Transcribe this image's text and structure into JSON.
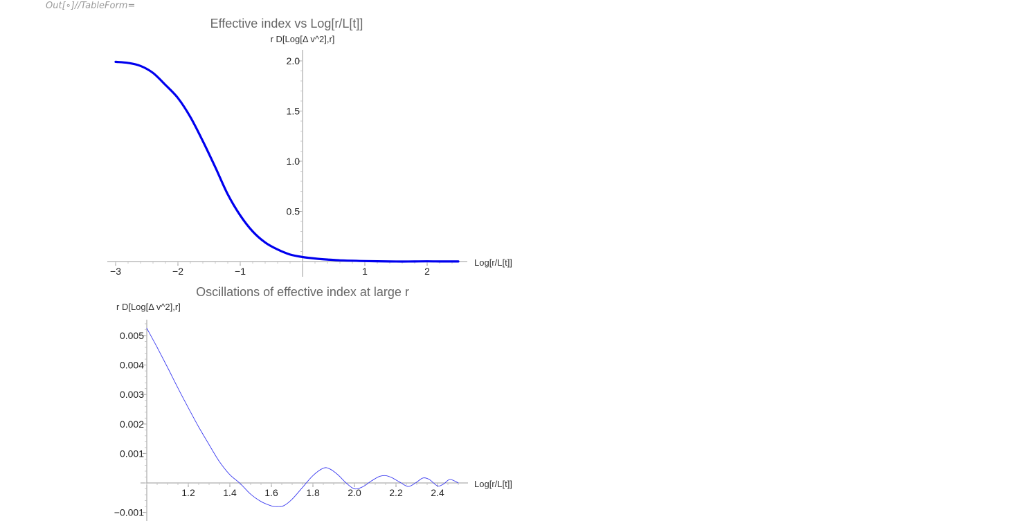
{
  "notebook": {
    "out_label": "Out[∘]//TableForm="
  },
  "chart_data": [
    {
      "type": "line",
      "title": "Effective index vs Log[r/L[t]]",
      "xlabel": "Log[r/L[t]]",
      "ylabel": "r D[Log[Δ v^2],r]",
      "xlim": [
        -3.1,
        2.6
      ],
      "ylim": [
        0.0,
        2.05
      ],
      "xticks": [
        -3,
        -2,
        -1,
        1,
        2
      ],
      "xtick_labels": [
        "−3",
        "−2",
        "−1",
        "1",
        "2"
      ],
      "yticks": [
        0.5,
        1.0,
        1.5,
        2.0
      ],
      "ytick_labels": [
        "0.5",
        "1.0",
        "1.5",
        "2.0"
      ],
      "grid": false,
      "series": [
        {
          "color": "#0000ee",
          "x": [
            -3.0,
            -2.8,
            -2.6,
            -2.4,
            -2.2,
            -2.0,
            -1.8,
            -1.6,
            -1.4,
            -1.2,
            -1.0,
            -0.8,
            -0.6,
            -0.4,
            -0.2,
            0.0,
            0.2,
            0.4,
            0.6,
            0.8,
            1.0,
            1.2,
            1.4,
            1.6,
            1.8,
            2.0,
            2.2,
            2.5
          ],
          "y": [
            1.99,
            1.98,
            1.95,
            1.88,
            1.76,
            1.63,
            1.44,
            1.2,
            0.94,
            0.67,
            0.46,
            0.3,
            0.19,
            0.12,
            0.07,
            0.045,
            0.03,
            0.02,
            0.012,
            0.008,
            0.005,
            0.003,
            0.001,
            0.0,
            0.001,
            0.002,
            0.001,
            0.001
          ]
        }
      ]
    },
    {
      "type": "line",
      "title": "Oscillations of effective index at large r",
      "xlabel": "Log[r/L[t]]",
      "ylabel": "r D[Log[Δ v^2],r]",
      "xlim": [
        1.0,
        2.52
      ],
      "ylim": [
        -0.0012,
        0.0055
      ],
      "xticks": [
        1.2,
        1.4,
        1.6,
        1.8,
        2.0,
        2.2,
        2.4
      ],
      "xtick_labels": [
        "1.2",
        "1.4",
        "1.6",
        "1.8",
        "2.0",
        "2.2",
        "2.4"
      ],
      "yticks": [
        -0.001,
        0.001,
        0.002,
        0.003,
        0.004,
        0.005
      ],
      "ytick_labels": [
        "−0.001",
        "0.001",
        "0.002",
        "0.003",
        "0.004",
        "0.005"
      ],
      "grid": false,
      "series": [
        {
          "color": "#3a3af0",
          "x": [
            1.0,
            1.05,
            1.1,
            1.15,
            1.2,
            1.25,
            1.3,
            1.35,
            1.4,
            1.45,
            1.5,
            1.55,
            1.6,
            1.63,
            1.66,
            1.7,
            1.75,
            1.8,
            1.85,
            1.88,
            1.92,
            1.96,
            2.0,
            2.04,
            2.08,
            2.12,
            2.15,
            2.18,
            2.22,
            2.26,
            2.3,
            2.33,
            2.36,
            2.4,
            2.43,
            2.46,
            2.5
          ],
          "y": [
            0.00525,
            0.0046,
            0.00392,
            0.00322,
            0.00255,
            0.0019,
            0.0013,
            0.00072,
            0.00028,
            -2e-05,
            -0.00038,
            -0.00063,
            -0.00078,
            -0.0008,
            -0.00077,
            -0.00055,
            -0.00015,
            0.00025,
            0.0005,
            0.00048,
            0.00028,
            0.0,
            -0.0002,
            -0.00013,
            6e-05,
            0.00022,
            0.00025,
            0.00018,
            2e-05,
            -0.00012,
            3e-05,
            0.00017,
            0.00012,
            -0.0001,
            -3e-05,
            0.00012,
            0.0
          ]
        }
      ]
    }
  ]
}
